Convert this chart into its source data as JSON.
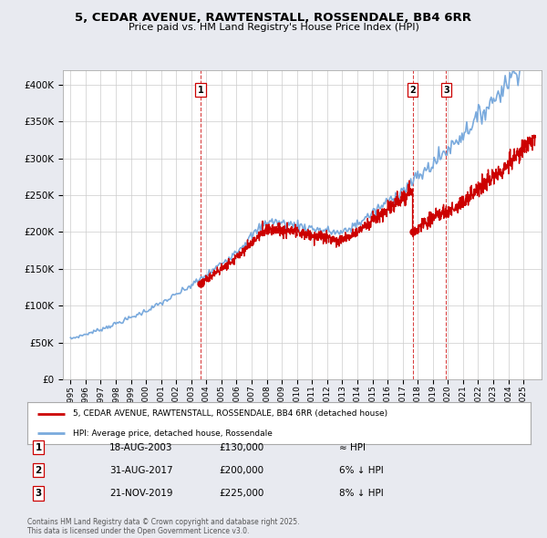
{
  "title": "5, CEDAR AVENUE, RAWTENSTALL, ROSSENDALE, BB4 6RR",
  "subtitle": "Price paid vs. HM Land Registry's House Price Index (HPI)",
  "legend_property": "5, CEDAR AVENUE, RAWTENSTALL, ROSSENDALE, BB4 6RR (detached house)",
  "legend_hpi": "HPI: Average price, detached house, Rossendale",
  "sale_annotations": [
    {
      "num": "1",
      "date": "18-AUG-2003",
      "price": "£130,000",
      "vs_hpi": "≈ HPI"
    },
    {
      "num": "2",
      "date": "31-AUG-2017",
      "price": "£200,000",
      "vs_hpi": "6% ↓ HPI"
    },
    {
      "num": "3",
      "date": "21-NOV-2019",
      "price": "£225,000",
      "vs_hpi": "8% ↓ HPI"
    }
  ],
  "property_color": "#cc0000",
  "hpi_color": "#7aaadd",
  "dashed_line_color": "#cc0000",
  "ylim": [
    0,
    420000
  ],
  "yticks": [
    0,
    50000,
    100000,
    150000,
    200000,
    250000,
    300000,
    350000,
    400000
  ],
  "xmin": 1994.5,
  "xmax": 2026.2,
  "background_color": "#e8eaf0",
  "plot_bg_color": "#ffffff",
  "footer": "Contains HM Land Registry data © Crown copyright and database right 2025.\nThis data is licensed under the Open Government Licence v3.0."
}
